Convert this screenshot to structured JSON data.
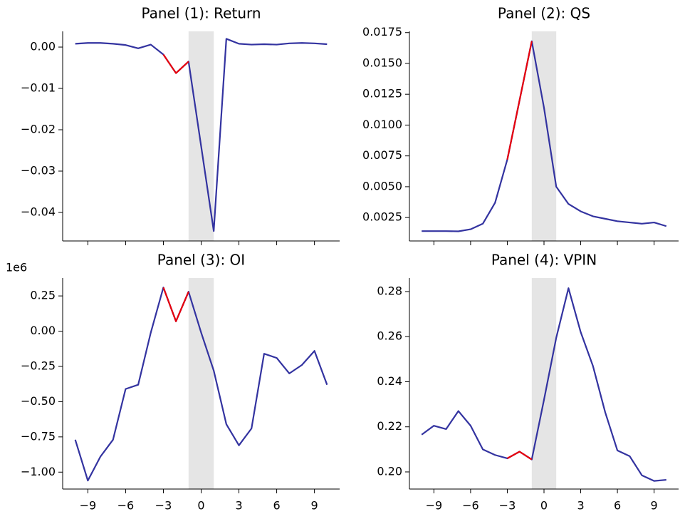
{
  "chart_data": [
    {
      "type": "line",
      "title": "Panel (1): Return",
      "x": [
        -10,
        -9,
        -8,
        -7,
        -6,
        -5,
        -4,
        -3,
        -2,
        -1,
        0,
        1,
        2,
        3,
        4,
        5,
        6,
        7,
        8,
        9,
        10
      ],
      "series": [
        {
          "color": "#3333a0",
          "values": [
            0.0008,
            0.001,
            0.001,
            0.0008,
            0.0005,
            -0.0003,
            0.0006,
            -0.0018,
            -0.0063,
            -0.0035,
            -0.024,
            -0.0445,
            0.002,
            0.0008,
            0.0006,
            0.0007,
            0.0006,
            0.0009,
            0.001,
            0.0009,
            0.0007
          ]
        }
      ],
      "highlight_range": [
        -3,
        -1
      ],
      "highlight_color": "#e8000b",
      "shade_span": [
        -1,
        1
      ],
      "shade_color": "#e5e5e5",
      "xlim": [
        -11,
        11
      ],
      "ylim": [
        -0.0469,
        0.0038
      ],
      "xticks": [
        -9,
        -6,
        -3,
        0,
        3,
        6,
        9
      ],
      "yticks": [
        {
          "value": 0,
          "label": "0.00"
        },
        {
          "value": -0.01,
          "label": "−0.01"
        },
        {
          "value": -0.02,
          "label": "−0.02"
        },
        {
          "value": -0.03,
          "label": "−0.03"
        },
        {
          "value": -0.04,
          "label": "−0.04"
        }
      ]
    },
    {
      "type": "line",
      "title": "Panel (2): QS",
      "x": [
        -10,
        -9,
        -8,
        -7,
        -6,
        -5,
        -4,
        -3,
        -2,
        -1,
        0,
        1,
        2,
        3,
        4,
        5,
        6,
        7,
        8,
        9,
        10
      ],
      "series": [
        {
          "color": "#3333a0",
          "values": [
            0.0014,
            0.0014,
            0.0014,
            0.00138,
            0.00155,
            0.002,
            0.0037,
            0.0072,
            0.012,
            0.0168,
            0.0114,
            0.005,
            0.0036,
            0.003,
            0.0026,
            0.0024,
            0.0022,
            0.0021,
            0.002,
            0.0021,
            0.0018
          ]
        }
      ],
      "highlight_range": [
        -3,
        -1
      ],
      "highlight_color": "#e8000b",
      "shade_span": [
        -1,
        1
      ],
      "shade_color": "#e5e5e5",
      "xlim": [
        -11,
        11
      ],
      "ylim": [
        0.0006,
        0.0176
      ],
      "xticks": [
        -9,
        -6,
        -3,
        0,
        3,
        6,
        9
      ],
      "yticks": [
        {
          "value": 0.0025,
          "label": "0.0025"
        },
        {
          "value": 0.005,
          "label": "0.0050"
        },
        {
          "value": 0.0075,
          "label": "0.0075"
        },
        {
          "value": 0.01,
          "label": "0.0100"
        },
        {
          "value": 0.0125,
          "label": "0.0125"
        },
        {
          "value": 0.015,
          "label": "0.0150"
        },
        {
          "value": 0.0175,
          "label": "0.0175"
        }
      ]
    },
    {
      "type": "line",
      "title": "Panel (3): OI",
      "offset_label": "1e6",
      "x": [
        -10,
        -9,
        -8,
        -7,
        -6,
        -5,
        -4,
        -3,
        -2,
        -1,
        0,
        1,
        2,
        3,
        4,
        5,
        6,
        7,
        8,
        9,
        10
      ],
      "series": [
        {
          "color": "#3333a0",
          "values": [
            -0.77,
            -1.06,
            -0.89,
            -0.77,
            -0.41,
            -0.38,
            -0.01,
            0.31,
            0.07,
            0.28,
            -0.01,
            -0.28,
            -0.66,
            -0.81,
            -0.69,
            -0.16,
            -0.19,
            -0.3,
            -0.24,
            -0.14,
            -0.38
          ]
        }
      ],
      "highlight_range": [
        -3,
        -1
      ],
      "highlight_color": "#e8000b",
      "shade_span": [
        -1,
        1
      ],
      "shade_color": "#e5e5e5",
      "xlim": [
        -11,
        11
      ],
      "ylim": [
        -1.12,
        0.377
      ],
      "xticks": [
        {
          "value": -9,
          "label": "−9"
        },
        {
          "value": -6,
          "label": "−6"
        },
        {
          "value": -3,
          "label": "−3"
        },
        0,
        3,
        6,
        9
      ],
      "yticks": [
        {
          "value": 0.25,
          "label": "0.25"
        },
        {
          "value": 0,
          "label": "0.00"
        },
        {
          "value": -0.25,
          "label": "−0.25"
        },
        {
          "value": -0.5,
          "label": "−0.50"
        },
        {
          "value": -0.75,
          "label": "−0.75"
        },
        {
          "value": -1,
          "label": "−1.00"
        }
      ]
    },
    {
      "type": "line",
      "title": "Panel (4): VPIN",
      "x": [
        -10,
        -9,
        -8,
        -7,
        -6,
        -5,
        -4,
        -3,
        -2,
        -1,
        0,
        1,
        2,
        3,
        4,
        5,
        6,
        7,
        8,
        9,
        10
      ],
      "series": [
        {
          "color": "#3333a0",
          "values": [
            0.2165,
            0.2205,
            0.219,
            0.227,
            0.2205,
            0.21,
            0.2075,
            0.206,
            0.209,
            0.2055,
            0.232,
            0.2595,
            0.2815,
            0.262,
            0.247,
            0.2265,
            0.2095,
            0.207,
            0.1985,
            0.196,
            0.1965
          ]
        }
      ],
      "highlight_range": [
        -3,
        -1
      ],
      "highlight_color": "#e8000b",
      "shade_span": [
        -1,
        1
      ],
      "shade_color": "#e5e5e5",
      "xlim": [
        -11,
        11
      ],
      "ylim": [
        0.1924,
        0.286
      ],
      "xticks": [
        {
          "value": -9,
          "label": "−9"
        },
        {
          "value": -6,
          "label": "−6"
        },
        {
          "value": -3,
          "label": "−3"
        },
        0,
        3,
        6,
        9
      ],
      "yticks": [
        {
          "value": 0.2,
          "label": "0.20"
        },
        {
          "value": 0.22,
          "label": "0.22"
        },
        {
          "value": 0.24,
          "label": "0.24"
        },
        {
          "value": 0.26,
          "label": "0.26"
        },
        {
          "value": 0.28,
          "label": "0.28"
        }
      ]
    }
  ]
}
